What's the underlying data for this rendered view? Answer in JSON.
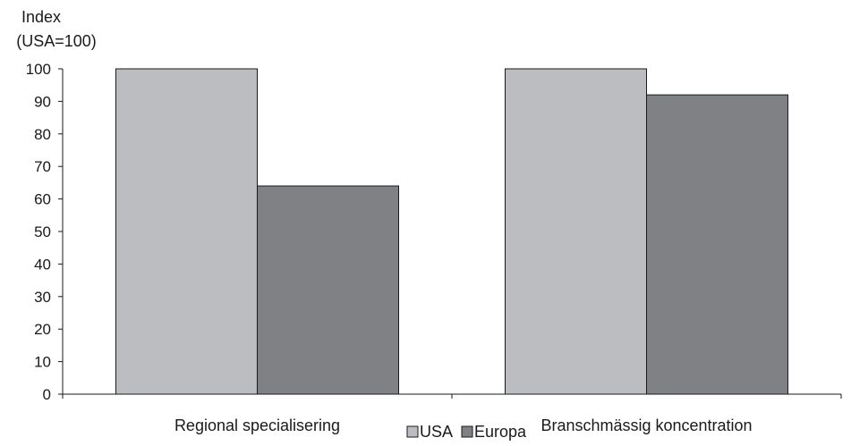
{
  "chart_data": {
    "type": "bar",
    "ylabel_line1": "Index",
    "ylabel_line2": "(USA=100)",
    "categories": [
      "Regional specialisering",
      "Branschmässig koncentration"
    ],
    "series": [
      {
        "name": "USA",
        "values": [
          100,
          100
        ],
        "color": "#bcbdc1"
      },
      {
        "name": "Europa",
        "values": [
          64,
          92
        ],
        "color": "#808185"
      }
    ],
    "ylim": [
      0,
      100
    ],
    "yticks": [
      0,
      10,
      20,
      30,
      40,
      50,
      60,
      70,
      80,
      90,
      100
    ],
    "grid": false,
    "legend_position": "bottom-center"
  }
}
